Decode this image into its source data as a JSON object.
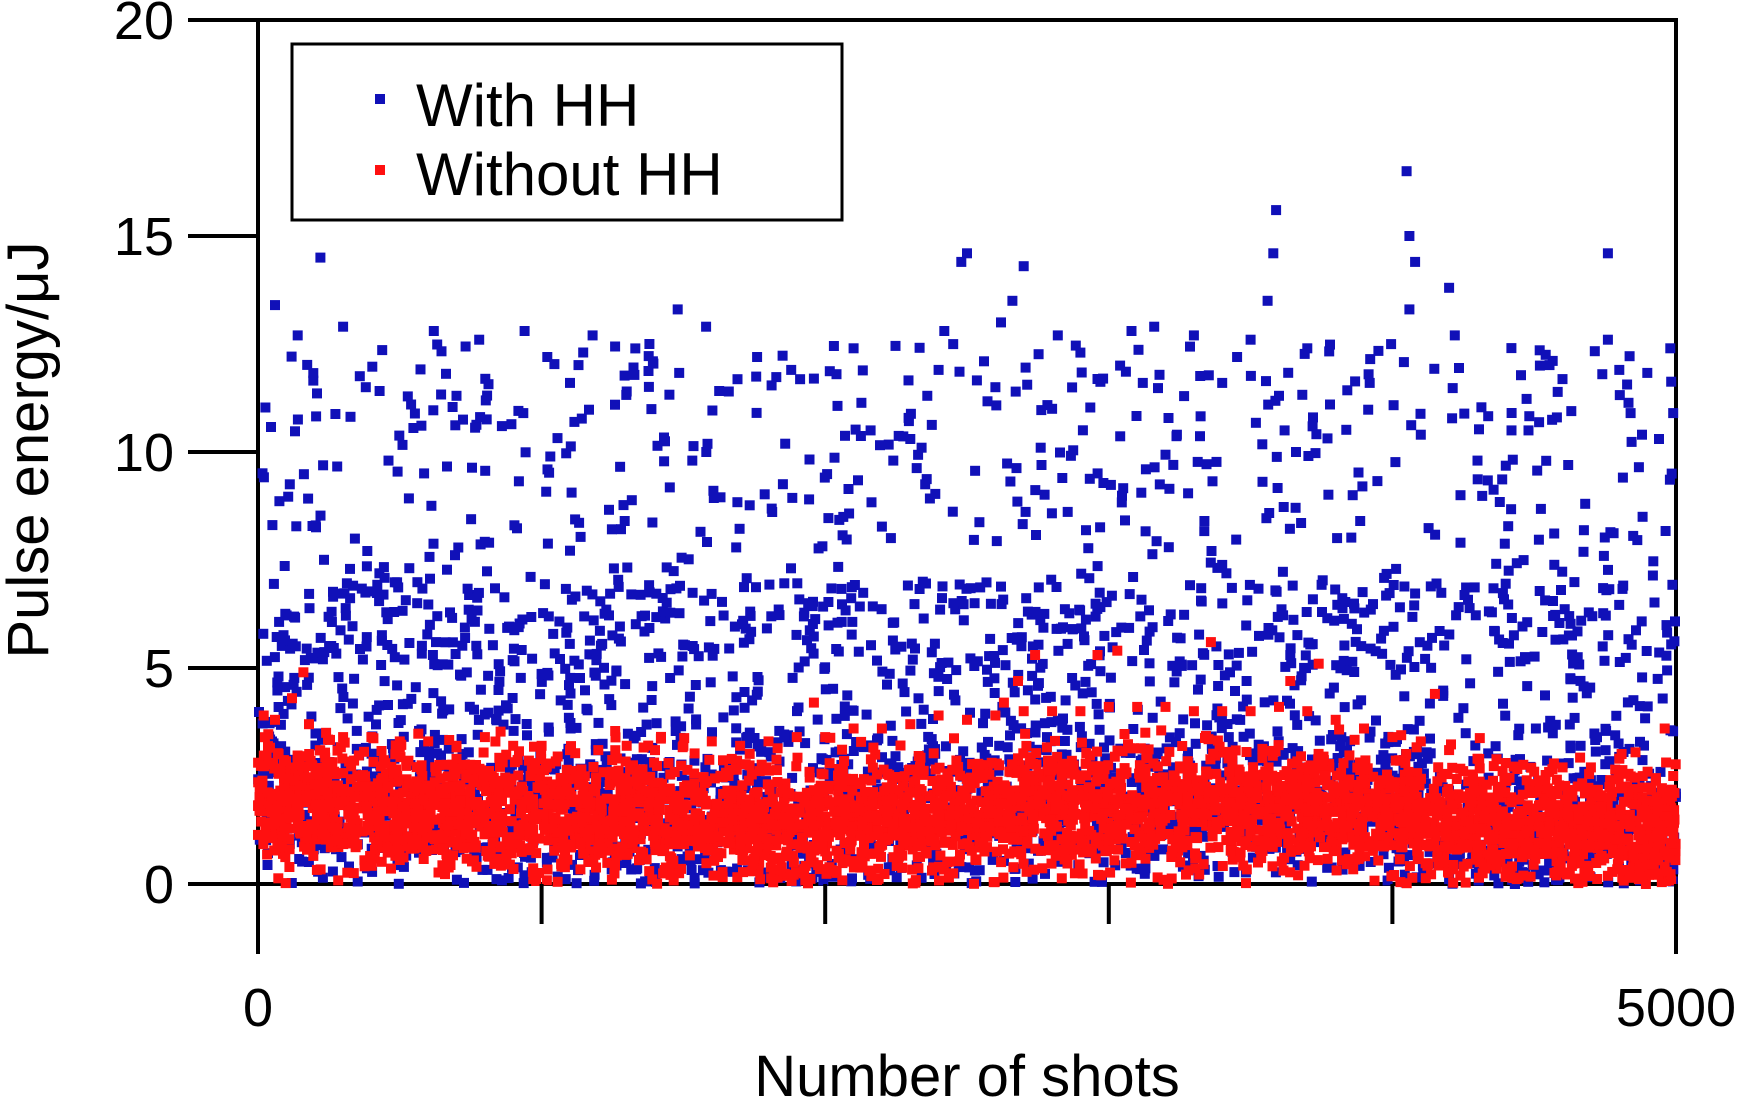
{
  "chart_data": {
    "type": "scatter",
    "title": "",
    "xlabel": "Number of shots",
    "ylabel": "Pulse energy/μJ",
    "xlim": [
      0,
      5000
    ],
    "ylim": [
      0,
      20
    ],
    "x_tick_labels": [
      "0",
      "5000"
    ],
    "x_ticks": [
      0,
      1000,
      2000,
      3000,
      4000,
      5000
    ],
    "y_tick_labels": [
      "0",
      "5",
      "10",
      "15",
      "20"
    ],
    "grid": false,
    "legend_position": "top-left",
    "series": [
      {
        "name": "With HH",
        "color": "#1010b8",
        "n_points": 5000,
        "points": [
          [
            60,
            13.4
          ],
          [
            140,
            12.7
          ],
          [
            220,
            14.5
          ],
          [
            300,
            12.9
          ],
          [
            380,
            11.5
          ],
          [
            460,
            9.8
          ],
          [
            540,
            11.1
          ],
          [
            620,
            12.8
          ],
          [
            700,
            11.3
          ],
          [
            780,
            12.6
          ],
          [
            860,
            10.6
          ],
          [
            940,
            12.8
          ],
          [
            1020,
            12.2
          ],
          [
            1100,
            11.6
          ],
          [
            1180,
            12.7
          ],
          [
            1300,
            11.4
          ],
          [
            1380,
            12.5
          ],
          [
            1480,
            13.3
          ],
          [
            1580,
            12.9
          ],
          [
            1660,
            11.4
          ],
          [
            1760,
            12.2
          ],
          [
            1880,
            11.9
          ],
          [
            1960,
            11.7
          ],
          [
            2040,
            11.8
          ],
          [
            2100,
            12.4
          ],
          [
            2160,
            10.5
          ],
          [
            2240,
            9.8
          ],
          [
            2300,
            10.3
          ],
          [
            2340,
            10.1
          ],
          [
            2360,
            11.3
          ],
          [
            2400,
            11.9
          ],
          [
            2420,
            12.8
          ],
          [
            2480,
            14.4
          ],
          [
            2500,
            14.6
          ],
          [
            2560,
            12.1
          ],
          [
            2600,
            11.5
          ],
          [
            2620,
            13.0
          ],
          [
            2660,
            13.5
          ],
          [
            2700,
            14.3
          ],
          [
            2760,
            10.1
          ],
          [
            2800,
            11.0
          ],
          [
            2820,
            12.7
          ],
          [
            2900,
            12.3
          ],
          [
            2980,
            11.7
          ],
          [
            3040,
            12.0
          ],
          [
            3080,
            12.8
          ],
          [
            3120,
            11.6
          ],
          [
            3160,
            12.9
          ],
          [
            3240,
            10.4
          ],
          [
            3300,
            12.7
          ],
          [
            3400,
            11.6
          ],
          [
            3500,
            12.6
          ],
          [
            3560,
            13.5
          ],
          [
            3580,
            14.6
          ],
          [
            3590,
            15.6
          ],
          [
            3600,
            11.3
          ],
          [
            3620,
            10.5
          ],
          [
            3660,
            10.0
          ],
          [
            3700,
            12.4
          ],
          [
            3780,
            11.1
          ],
          [
            3860,
            9.0
          ],
          [
            3920,
            11.6
          ],
          [
            4050,
            16.5
          ],
          [
            4060,
            15.0
          ],
          [
            4080,
            14.4
          ],
          [
            4060,
            13.3
          ],
          [
            4100,
            10.4
          ],
          [
            4200,
            13.8
          ],
          [
            4220,
            12.7
          ],
          [
            4240,
            9.0
          ],
          [
            4240,
            7.9
          ],
          [
            4300,
            9.8
          ],
          [
            4420,
            10.5
          ],
          [
            4480,
            10.5
          ],
          [
            4520,
            12.0
          ],
          [
            4580,
            10.8
          ],
          [
            4620,
            9.7
          ],
          [
            4680,
            8.8
          ],
          [
            4760,
            14.6
          ],
          [
            4760,
            12.6
          ],
          [
            4740,
            11.8
          ],
          [
            4800,
            11.9
          ],
          [
            4840,
            10.9
          ],
          [
            4880,
            10.4
          ],
          [
            4940,
            10.3
          ],
          [
            4980,
            12.4
          ],
          [
            4990,
            10.9
          ],
          [
            4985,
            9.5
          ]
        ]
      },
      {
        "name": "Without HH",
        "color": "#ff1010",
        "n_points": 5000,
        "points": [
          [
            20,
            3.9
          ],
          [
            60,
            3.8
          ],
          [
            120,
            4.3
          ],
          [
            180,
            3.7
          ],
          [
            240,
            3.5
          ],
          [
            300,
            3.4
          ],
          [
            400,
            3.4
          ],
          [
            500,
            3.3
          ],
          [
            600,
            3.3
          ],
          [
            700,
            3.2
          ],
          [
            800,
            3.4
          ],
          [
            900,
            3.2
          ],
          [
            1000,
            3.2
          ],
          [
            1100,
            3.1
          ],
          [
            1200,
            3.1
          ],
          [
            1300,
            3.2
          ],
          [
            1400,
            3.1
          ],
          [
            1500,
            3.2
          ],
          [
            1600,
            3.3
          ],
          [
            1700,
            3.2
          ],
          [
            1800,
            3.3
          ],
          [
            1900,
            3.4
          ],
          [
            2000,
            3.4
          ],
          [
            2100,
            3.6
          ],
          [
            2200,
            3.6
          ],
          [
            2300,
            3.7
          ],
          [
            2400,
            3.9
          ],
          [
            2500,
            3.8
          ],
          [
            2600,
            3.9
          ],
          [
            2700,
            4.0
          ],
          [
            2800,
            4.0
          ],
          [
            2900,
            4.0
          ],
          [
            3000,
            4.1
          ],
          [
            3100,
            4.1
          ],
          [
            3200,
            4.1
          ],
          [
            3300,
            4.0
          ],
          [
            3400,
            4.0
          ],
          [
            3500,
            4.0
          ],
          [
            3600,
            4.1
          ],
          [
            3700,
            4.0
          ],
          [
            3800,
            3.8
          ],
          [
            3900,
            3.6
          ],
          [
            4000,
            3.4
          ],
          [
            4100,
            3.3
          ],
          [
            4200,
            3.1
          ],
          [
            4300,
            2.9
          ],
          [
            4400,
            2.8
          ],
          [
            4500,
            2.6
          ],
          [
            4600,
            2.7
          ],
          [
            4700,
            2.7
          ],
          [
            4800,
            2.9
          ],
          [
            4900,
            2.6
          ],
          [
            4990,
            2.5
          ],
          [
            2630,
            4.2
          ],
          [
            2680,
            4.7
          ],
          [
            2740,
            5.3
          ],
          [
            2960,
            5.3
          ],
          [
            3030,
            5.4
          ],
          [
            3360,
            5.6
          ],
          [
            3640,
            4.7
          ],
          [
            3740,
            5.1
          ],
          [
            1960,
            4.2
          ],
          [
            160,
            4.9
          ],
          [
            4150,
            4.4
          ],
          [
            4960,
            3.6
          ]
        ]
      }
    ]
  }
}
